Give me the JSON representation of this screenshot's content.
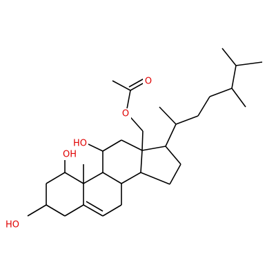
{
  "atom_labels": [
    "O",
    "O",
    "HO",
    "OH",
    "HO"
  ]
}
